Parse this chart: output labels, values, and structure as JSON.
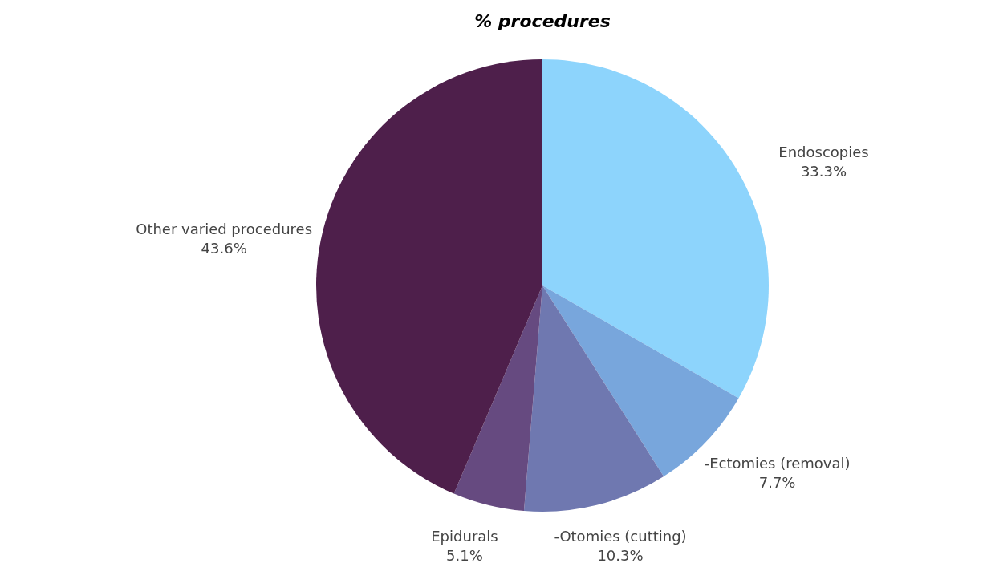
{
  "chart_data": {
    "type": "pie",
    "title": "% procedures",
    "categories": [
      "Endoscopies",
      "-Ectomies (removal)",
      "-Otomies (cutting)",
      "Epidurals",
      "Other varied procedures"
    ],
    "values": [
      33.3,
      7.7,
      10.3,
      5.1,
      43.6
    ],
    "value_labels": [
      "33.3%",
      "7.7%",
      "10.3%",
      "5.1%",
      "43.6%"
    ],
    "colors": [
      "#8dd4fc",
      "#78a6dc",
      "#6f78b0",
      "#664a80",
      "#4e1f4b"
    ]
  }
}
